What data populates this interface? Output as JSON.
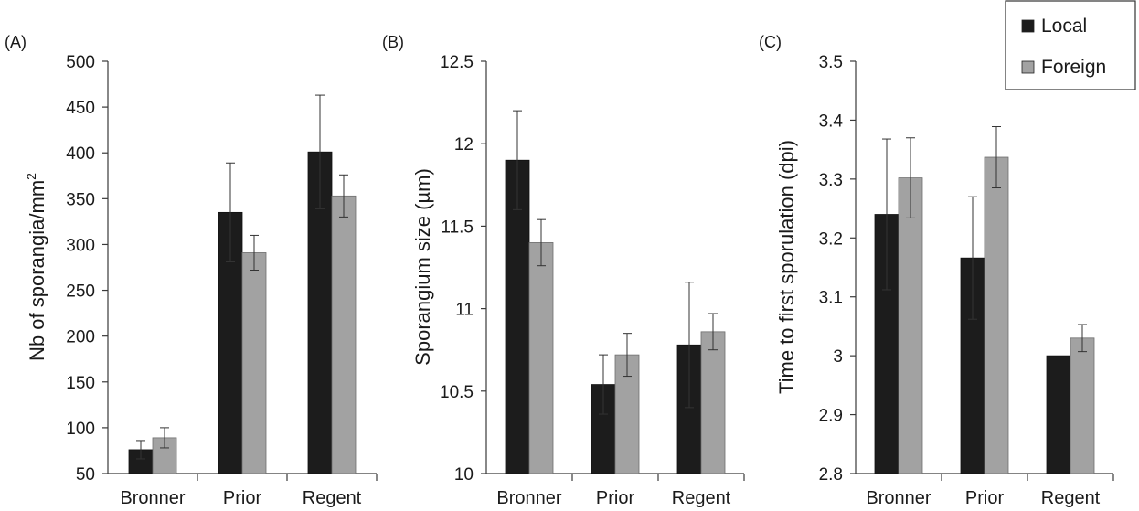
{
  "colors": {
    "local": "#1c1c1c",
    "foreign": "#a2a2a2",
    "axis": "#3a3a3a"
  },
  "legend": {
    "position": "top-right",
    "entries": [
      {
        "name": "Local",
        "color": "#1c1c1c"
      },
      {
        "name": "Foreign",
        "color": "#a2a2a2"
      }
    ]
  },
  "chart_data": [
    {
      "type": "bar",
      "panel_label": "(A)",
      "ylabel": "Nb of sporangia/mm",
      "ylabel_sup": "2",
      "categories": [
        "Bronner",
        "Prior",
        "Regent"
      ],
      "ylim": [
        50,
        500
      ],
      "yticks": [
        50,
        100,
        150,
        200,
        250,
        300,
        350,
        400,
        450,
        500
      ],
      "ytick_labels": [
        "50",
        "100",
        "150",
        "200",
        "250",
        "300",
        "350",
        "400",
        "450",
        "500"
      ],
      "series": [
        {
          "name": "Local",
          "values": [
            76,
            335,
            401
          ],
          "errors": [
            10,
            54,
            62
          ]
        },
        {
          "name": "Foreign",
          "values": [
            89,
            291,
            353
          ],
          "errors": [
            11,
            19,
            23
          ]
        }
      ]
    },
    {
      "type": "bar",
      "panel_label": "(B)",
      "ylabel": "Sporangium size (µm)",
      "ylabel_sup": "",
      "categories": [
        "Bronner",
        "Prior",
        "Regent"
      ],
      "ylim": [
        10,
        12.5
      ],
      "yticks": [
        10,
        10.5,
        11,
        11.5,
        12,
        12.5
      ],
      "ytick_labels": [
        "10",
        "10.5",
        "11",
        "11.5",
        "12",
        "12.5"
      ],
      "series": [
        {
          "name": "Local",
          "values": [
            11.9,
            10.54,
            10.78
          ],
          "errors": [
            0.3,
            0.18,
            0.38
          ]
        },
        {
          "name": "Foreign",
          "values": [
            11.4,
            10.72,
            10.86
          ],
          "errors": [
            0.14,
            0.13,
            0.11
          ]
        }
      ]
    },
    {
      "type": "bar",
      "panel_label": "(C)",
      "ylabel": "Time to first sporulation (dpi)",
      "ylabel_sup": "",
      "categories": [
        "Bronner",
        "Prior",
        "Regent"
      ],
      "ylim": [
        2.8,
        3.5
      ],
      "yticks": [
        2.8,
        2.9,
        3.0,
        3.1,
        3.2,
        3.3,
        3.4,
        3.5
      ],
      "ytick_labels": [
        "2.8",
        "2.9",
        "3",
        "3.1",
        "3.2",
        "3.3",
        "3.4",
        "3.5"
      ],
      "series": [
        {
          "name": "Local",
          "values": [
            3.24,
            3.166,
            3.0
          ],
          "errors": [
            0.128,
            0.104,
            0.0
          ]
        },
        {
          "name": "Foreign",
          "values": [
            3.302,
            3.337,
            3.03
          ],
          "errors": [
            0.068,
            0.052,
            0.023
          ]
        }
      ]
    }
  ]
}
